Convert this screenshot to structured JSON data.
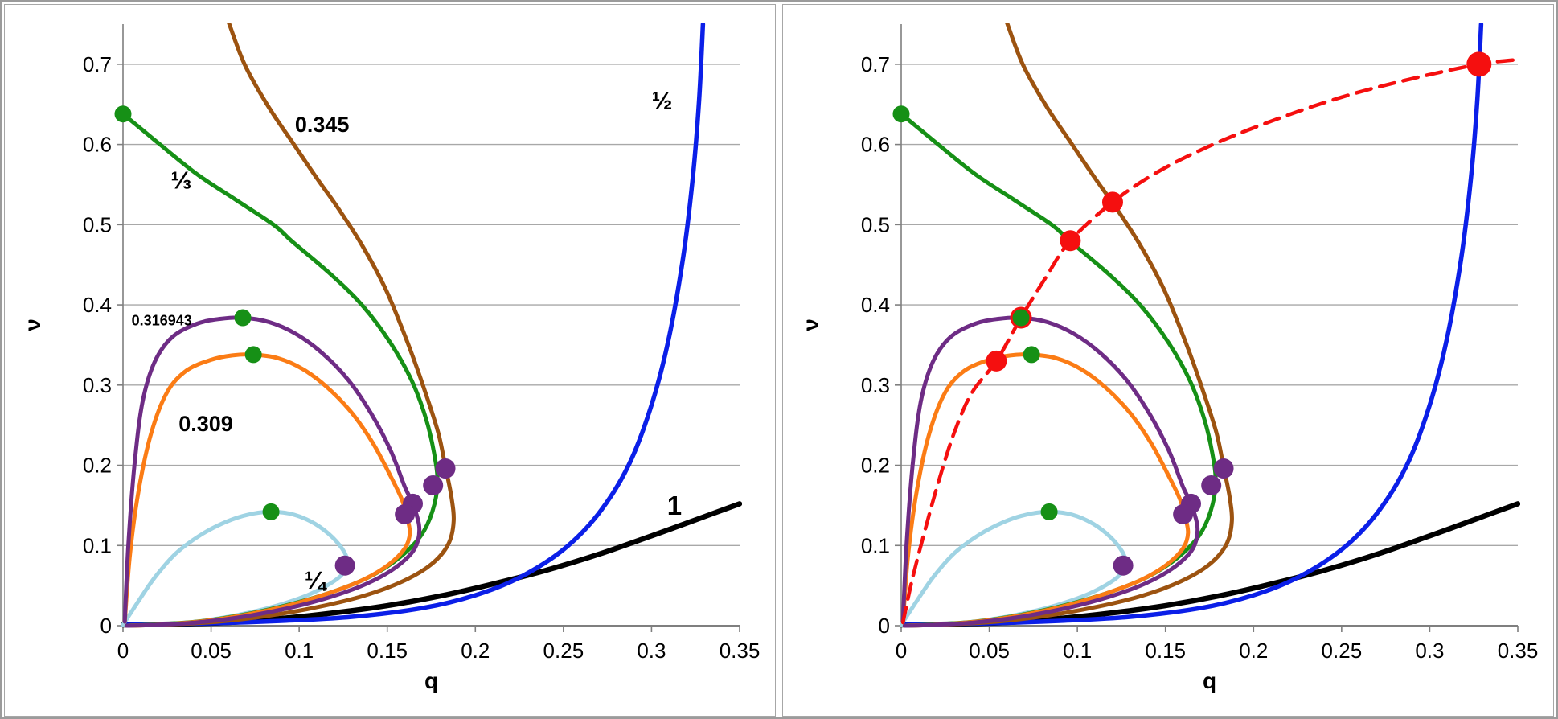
{
  "colors": {
    "green": "#169016",
    "brown": "#9C5310",
    "blue": "#0B1FE8",
    "black": "#000000",
    "purple": "#6E2C85",
    "orange": "#FB7C15",
    "cyan": "#9FD3E3",
    "red": "#F50F0F",
    "grid": "#A8A8A8",
    "axis": "#7F7F7F",
    "text": "#000000"
  },
  "chart_data": {
    "type": "line",
    "title": "",
    "xlabel": "q",
    "ylabel": "ν",
    "xlim": [
      0,
      0.35
    ],
    "ylim": [
      0,
      0.75
    ],
    "grid": "horizontal",
    "x_ticks": {
      "values": [
        0,
        0.05,
        0.1,
        0.15,
        0.2,
        0.25,
        0.3,
        0.35
      ],
      "labels": [
        "0",
        "0.05",
        "0.1",
        "0.15",
        "0.2",
        "0.25",
        "0.3",
        "0.35"
      ]
    },
    "y_ticks": {
      "values": [
        0,
        0.1,
        0.2,
        0.3,
        0.4,
        0.5,
        0.6,
        0.7
      ],
      "labels": [
        "0",
        "0.1",
        "0.2",
        "0.3",
        "0.4",
        "0.5",
        "0.6",
        "0.7"
      ]
    },
    "series": [
      {
        "id": "one",
        "name": "1",
        "color_key": "black",
        "width": 6.5,
        "points": [
          [
            0,
            0.001
          ],
          [
            0.03,
            0.002
          ],
          [
            0.06,
            0.004
          ],
          [
            0.09,
            0.009
          ],
          [
            0.12,
            0.016
          ],
          [
            0.15,
            0.025
          ],
          [
            0.18,
            0.037
          ],
          [
            0.21,
            0.052
          ],
          [
            0.24,
            0.069
          ],
          [
            0.27,
            0.089
          ],
          [
            0.3,
            0.112
          ],
          [
            0.325,
            0.132
          ],
          [
            0.35,
            0.152
          ]
        ]
      },
      {
        "id": "half",
        "name": "½",
        "color_key": "blue",
        "width": 5.5,
        "points": [
          [
            0,
            0.001
          ],
          [
            0.05,
            0.003
          ],
          [
            0.09,
            0.006
          ],
          [
            0.13,
            0.011
          ],
          [
            0.17,
            0.022
          ],
          [
            0.2,
            0.038
          ],
          [
            0.225,
            0.06
          ],
          [
            0.25,
            0.095
          ],
          [
            0.27,
            0.14
          ],
          [
            0.287,
            0.2
          ],
          [
            0.3,
            0.275
          ],
          [
            0.31,
            0.36
          ],
          [
            0.318,
            0.46
          ],
          [
            0.3235,
            0.56
          ],
          [
            0.327,
            0.655
          ],
          [
            0.3292,
            0.75
          ]
        ]
      },
      {
        "id": "quarter",
        "name": "¼",
        "color_key": "cyan",
        "width": 5,
        "points": [
          [
            0,
            0.001
          ],
          [
            0.008,
            0.028
          ],
          [
            0.018,
            0.06
          ],
          [
            0.03,
            0.09
          ],
          [
            0.044,
            0.113
          ],
          [
            0.058,
            0.129
          ],
          [
            0.071,
            0.1385
          ],
          [
            0.084,
            0.142
          ],
          [
            0.097,
            0.1385
          ],
          [
            0.109,
            0.127
          ],
          [
            0.119,
            0.11
          ],
          [
            0.1258,
            0.091
          ],
          [
            0.1272,
            0.077
          ],
          [
            0.124,
            0.063
          ],
          [
            0.115,
            0.049
          ],
          [
            0.103,
            0.0365
          ],
          [
            0.088,
            0.0255
          ],
          [
            0.071,
            0.016
          ],
          [
            0.053,
            0.0085
          ],
          [
            0.035,
            0.0035
          ],
          [
            0.017,
            0.001
          ],
          [
            0.002,
            0
          ]
        ]
      },
      {
        "id": "p345",
        "name": "0.345",
        "color_key": "brown",
        "width": 5,
        "points": [
          [
            0.06,
            0.752
          ],
          [
            0.069,
            0.7
          ],
          [
            0.082,
            0.649
          ],
          [
            0.097,
            0.6
          ],
          [
            0.11,
            0.558
          ],
          [
            0.121,
            0.524
          ],
          [
            0.135,
            0.477
          ],
          [
            0.149,
            0.42
          ],
          [
            0.161,
            0.356
          ],
          [
            0.171,
            0.295
          ],
          [
            0.179,
            0.24
          ],
          [
            0.183,
            0.198
          ],
          [
            0.1863,
            0.162
          ],
          [
            0.1877,
            0.13
          ],
          [
            0.1845,
            0.101
          ],
          [
            0.175,
            0.0765
          ],
          [
            0.159,
            0.0555
          ],
          [
            0.137,
            0.0375
          ],
          [
            0.111,
            0.0235
          ],
          [
            0.083,
            0.0125
          ],
          [
            0.054,
            0.005
          ],
          [
            0.026,
            0.0015
          ],
          [
            0.003,
            0
          ]
        ]
      },
      {
        "id": "third",
        "name": "⅓",
        "color_key": "green",
        "width": 5,
        "points": [
          [
            0,
            0.638
          ],
          [
            0.01,
            0.62
          ],
          [
            0.021,
            0.6
          ],
          [
            0.042,
            0.563
          ],
          [
            0.064,
            0.531
          ],
          [
            0.086,
            0.499
          ],
          [
            0.096,
            0.479
          ],
          [
            0.118,
            0.438
          ],
          [
            0.136,
            0.399
          ],
          [
            0.152,
            0.352
          ],
          [
            0.164,
            0.305
          ],
          [
            0.172,
            0.258
          ],
          [
            0.1766,
            0.215
          ],
          [
            0.1785,
            0.178
          ],
          [
            0.1757,
            0.143
          ],
          [
            0.169,
            0.112
          ],
          [
            0.157,
            0.085
          ],
          [
            0.14,
            0.061
          ],
          [
            0.118,
            0.0415
          ],
          [
            0.093,
            0.0255
          ],
          [
            0.067,
            0.013
          ],
          [
            0.042,
            0.005
          ],
          [
            0.018,
            0.0015
          ],
          [
            0.002,
            0
          ]
        ]
      },
      {
        "id": "p309",
        "name": "0.309",
        "color_key": "orange",
        "width": 5,
        "points": [
          [
            0.001,
            0.005
          ],
          [
            0.004,
            0.09
          ],
          [
            0.009,
            0.17
          ],
          [
            0.016,
            0.24
          ],
          [
            0.025,
            0.291
          ],
          [
            0.036,
            0.318
          ],
          [
            0.05,
            0.3315
          ],
          [
            0.062,
            0.337
          ],
          [
            0.074,
            0.338
          ],
          [
            0.088,
            0.3335
          ],
          [
            0.102,
            0.32
          ],
          [
            0.116,
            0.297
          ],
          [
            0.13,
            0.265
          ],
          [
            0.142,
            0.227
          ],
          [
            0.152,
            0.186
          ],
          [
            0.158,
            0.159
          ],
          [
            0.1608,
            0.139
          ],
          [
            0.1628,
            0.116
          ],
          [
            0.16,
            0.0965
          ],
          [
            0.151,
            0.0765
          ],
          [
            0.137,
            0.058
          ],
          [
            0.118,
            0.0415
          ],
          [
            0.096,
            0.0265
          ],
          [
            0.072,
            0.0145
          ],
          [
            0.047,
            0.006
          ],
          [
            0.022,
            0.0015
          ],
          [
            0.002,
            0
          ]
        ]
      },
      {
        "id": "p316943",
        "name": "0.316943",
        "color_key": "purple",
        "width": 5,
        "points": [
          [
            0.001,
            0.005
          ],
          [
            0.003,
            0.1
          ],
          [
            0.0065,
            0.2
          ],
          [
            0.011,
            0.278
          ],
          [
            0.018,
            0.329
          ],
          [
            0.028,
            0.36
          ],
          [
            0.042,
            0.3765
          ],
          [
            0.055,
            0.3825
          ],
          [
            0.068,
            0.384
          ],
          [
            0.083,
            0.3785
          ],
          [
            0.098,
            0.364
          ],
          [
            0.113,
            0.34
          ],
          [
            0.128,
            0.306
          ],
          [
            0.141,
            0.264
          ],
          [
            0.152,
            0.218
          ],
          [
            0.16,
            0.173
          ],
          [
            0.1645,
            0.152
          ],
          [
            0.1682,
            0.122
          ],
          [
            0.1655,
            0.096
          ],
          [
            0.155,
            0.073
          ],
          [
            0.139,
            0.053
          ],
          [
            0.118,
            0.036
          ],
          [
            0.094,
            0.022
          ],
          [
            0.068,
            0.011
          ],
          [
            0.042,
            0.004
          ],
          [
            0.018,
            0.001
          ],
          [
            0.002,
            0
          ]
        ]
      }
    ],
    "green_markers": {
      "color_key": "green",
      "radius": 10.5,
      "points": [
        [
          0,
          0.638
        ],
        [
          0.068,
          0.384
        ],
        [
          0.074,
          0.338
        ],
        [
          0.084,
          0.142
        ]
      ]
    },
    "purple_markers": {
      "color_key": "purple",
      "radius": 12.5,
      "points": [
        [
          0.183,
          0.196
        ],
        [
          0.176,
          0.175
        ],
        [
          0.1645,
          0.152
        ],
        [
          0.16,
          0.139
        ],
        [
          0.126,
          0.075
        ]
      ]
    },
    "panels": [
      {
        "id": "left",
        "curve_labels": [
          {
            "text": "0.345",
            "q": 0.113,
            "v": 0.625,
            "size": 27
          },
          {
            "text": "½",
            "q": 0.306,
            "v": 0.655,
            "size": 31
          },
          {
            "text": "⅓",
            "q": 0.033,
            "v": 0.556,
            "size": 31
          },
          {
            "text": "0.316943",
            "q": 0.022,
            "v": 0.381,
            "size": 18
          },
          {
            "text": "0.309",
            "q": 0.047,
            "v": 0.252,
            "size": 27
          },
          {
            "text": "¼",
            "q": 0.109,
            "v": 0.057,
            "size": 31
          },
          {
            "text": "1",
            "q": 0.313,
            "v": 0.15,
            "size": 33
          }
        ],
        "extra_series": [],
        "red_markers": []
      },
      {
        "id": "right",
        "curve_labels": [],
        "extra_series": [
          {
            "id": "red-dashed",
            "name": "red dashed",
            "color_key": "red",
            "width": 4.5,
            "dash": "19 11",
            "points": [
              [
                0.001,
                0.004
              ],
              [
                0.006,
                0.055
              ],
              [
                0.013,
                0.115
              ],
              [
                0.021,
                0.178
              ],
              [
                0.03,
                0.24
              ],
              [
                0.04,
                0.29
              ],
              [
                0.054,
                0.33
              ],
              [
                0.068,
                0.384
              ],
              [
                0.082,
                0.434
              ],
              [
                0.096,
                0.48
              ],
              [
                0.12,
                0.528
              ],
              [
                0.145,
                0.565
              ],
              [
                0.175,
                0.598
              ],
              [
                0.21,
                0.629
              ],
              [
                0.25,
                0.659
              ],
              [
                0.29,
                0.682
              ],
              [
                0.328,
                0.7
              ],
              [
                0.351,
                0.706
              ]
            ]
          }
        ],
        "red_markers": [
          {
            "q": 0.054,
            "v": 0.33,
            "r": 13
          },
          {
            "q": 0.068,
            "v": 0.384,
            "r": 13.5
          },
          {
            "q": 0.096,
            "v": 0.48,
            "r": 13
          },
          {
            "q": 0.12,
            "v": 0.528,
            "r": 13
          },
          {
            "q": 0.328,
            "v": 0.7,
            "r": 15.5
          }
        ]
      }
    ]
  }
}
